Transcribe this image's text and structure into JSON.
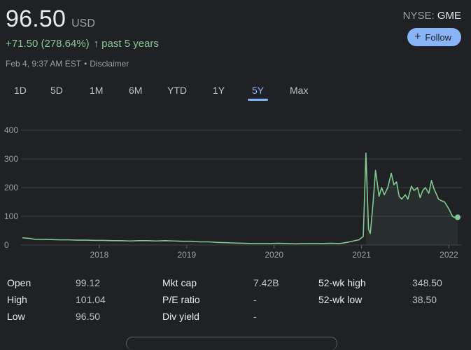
{
  "quote": {
    "price": "96.50",
    "currency": "USD",
    "change": "+71.50 (278.64%)",
    "change_arrow": "↑",
    "change_period": "past 5 years",
    "timestamp": "Feb 4, 9:37 AM EST",
    "separator": "•",
    "disclaimer": "Disclaimer",
    "exchange": "NYSE:",
    "symbol": "GME",
    "follow_label": "Follow",
    "follow_icon": "+"
  },
  "ranges": [
    "1D",
    "5D",
    "1M",
    "6M",
    "YTD",
    "1Y",
    "5Y",
    "Max"
  ],
  "active_range": "5Y",
  "colors": {
    "line": "#81c995",
    "accent": "#8ab4f8",
    "grid": "#3c4043",
    "bg": "#202124"
  },
  "chart_data": {
    "type": "line",
    "y_ticks": [
      "400",
      "300",
      "200",
      "100",
      "0"
    ],
    "x_ticks": [
      "2018",
      "2019",
      "2020",
      "2021",
      "2022"
    ],
    "ylim": [
      0,
      400
    ],
    "xlim": [
      2017.12,
      2022.1
    ],
    "grid": true,
    "series": [
      {
        "x": [
          2017.12,
          2017.2,
          2017.26,
          2017.35,
          2017.45,
          2017.55,
          2017.65,
          2017.75,
          2017.85,
          2017.95,
          2018.05,
          2018.15,
          2018.25,
          2018.35,
          2018.45,
          2018.55,
          2018.65,
          2018.75,
          2018.85,
          2018.95,
          2019.05,
          2019.15,
          2019.25,
          2019.35,
          2019.45,
          2019.55,
          2019.65,
          2019.75,
          2019.85,
          2019.95,
          2020.05,
          2020.15,
          2020.25,
          2020.35,
          2020.45,
          2020.55,
          2020.65,
          2020.75,
          2020.85,
          2020.92,
          2020.97,
          2021.02,
          2021.05,
          2021.08,
          2021.1,
          2021.13,
          2021.16,
          2021.2,
          2021.23,
          2021.26,
          2021.3,
          2021.34,
          2021.37,
          2021.4,
          2021.43,
          2021.46,
          2021.5,
          2021.53,
          2021.57,
          2021.6,
          2021.64,
          2021.67,
          2021.7,
          2021.73,
          2021.77,
          2021.8,
          2021.83,
          2021.86,
          2021.88,
          2021.91,
          2021.95,
          2022.0,
          2022.04,
          2022.07,
          2022.1
        ],
        "y": [
          25,
          23,
          20,
          20,
          19,
          18,
          18,
          17,
          17,
          16,
          16,
          15,
          15,
          14,
          15,
          15,
          14,
          15,
          14,
          13,
          13,
          11,
          11,
          9,
          8,
          7,
          6,
          5,
          5,
          5,
          6,
          5,
          4,
          5,
          5,
          5,
          6,
          5,
          10,
          15,
          18,
          30,
          320,
          55,
          40,
          140,
          260,
          170,
          200,
          175,
          200,
          250,
          210,
          220,
          170,
          160,
          175,
          160,
          205,
          190,
          200,
          165,
          190,
          200,
          180,
          225,
          195,
          175,
          160,
          155,
          150,
          125,
          100,
          95,
          96.5
        ]
      }
    ]
  },
  "stats": [
    [
      {
        "label": "Open",
        "value": "99.12"
      },
      {
        "label": "Mkt cap",
        "value": "7.42B"
      },
      {
        "label": "52-wk high",
        "value": "348.50"
      }
    ],
    [
      {
        "label": "High",
        "value": "101.04"
      },
      {
        "label": "P/E ratio",
        "value": "-"
      },
      {
        "label": "52-wk low",
        "value": "38.50"
      }
    ],
    [
      {
        "label": "Low",
        "value": "96.50"
      },
      {
        "label": "Div yield",
        "value": "-"
      }
    ]
  ]
}
